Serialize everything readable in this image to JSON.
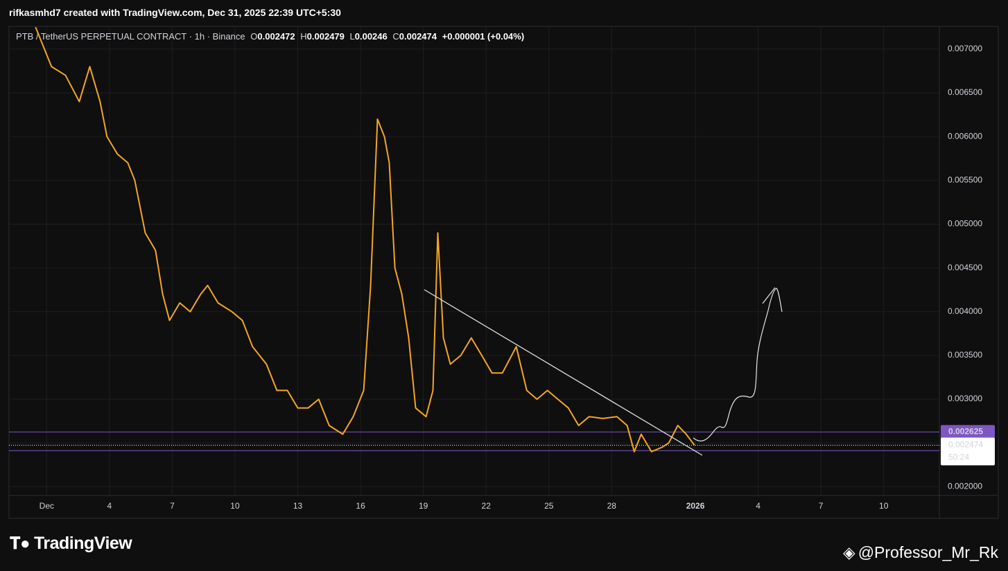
{
  "header": {
    "author_line": "rifkasmhd7 created with TradingView.com, Dec 31, 2025 22:39 UTC+5:30"
  },
  "chart_data": {
    "type": "line",
    "symbol": "PTB / TetherUS PERPETUAL CONTRACT · 1h · Binance",
    "ohlc": [
      {
        "name": "O",
        "value": 0.002472
      },
      {
        "name": "H",
        "value": 0.002479
      },
      {
        "name": "L",
        "value": 0.00246
      },
      {
        "name": "C",
        "value": 0.002474
      }
    ],
    "change": "+0.000001 (+0.04%)",
    "color": "#f5a623",
    "x": [
      0.47,
      1.23,
      1.9,
      2.56,
      3.06,
      3.55,
      3.88,
      4.38,
      4.88,
      5.21,
      5.71,
      6.2,
      6.54,
      6.87,
      7.36,
      7.86,
      8.36,
      8.69,
      9.19,
      9.85,
      10.35,
      10.84,
      11.5,
      12.0,
      12.5,
      13.0,
      13.5,
      14.0,
      14.5,
      15.15,
      15.65,
      16.15,
      16.48,
      16.81,
      17.14,
      17.37,
      17.64,
      17.97,
      18.3,
      18.63,
      19.13,
      19.46,
      19.69,
      19.96,
      20.29,
      20.79,
      21.29,
      21.79,
      22.28,
      22.78,
      23.44,
      23.94,
      24.43,
      24.93,
      25.43,
      25.93,
      26.42,
      26.92,
      27.58,
      28.25,
      28.74,
      29.08,
      29.41,
      29.9,
      30.4,
      30.73,
      31.16,
      31.56,
      31.96
    ],
    "values": [
      0.00725,
      0.0068,
      0.0067,
      0.0064,
      0.0068,
      0.0064,
      0.006,
      0.0058,
      0.0057,
      0.0055,
      0.0049,
      0.0047,
      0.0042,
      0.0039,
      0.0041,
      0.004,
      0.0042,
      0.0043,
      0.0041,
      0.004,
      0.0039,
      0.0036,
      0.0034,
      0.0031,
      0.0031,
      0.0029,
      0.0029,
      0.003,
      0.0027,
      0.0026,
      0.0028,
      0.0031,
      0.0043,
      0.0062,
      0.006,
      0.0057,
      0.0045,
      0.0042,
      0.0037,
      0.0029,
      0.0028,
      0.0031,
      0.0049,
      0.0037,
      0.0034,
      0.0035,
      0.0037,
      0.0035,
      0.0033,
      0.0033,
      0.0036,
      0.0031,
      0.003,
      0.0031,
      0.003,
      0.0029,
      0.0027,
      0.0028,
      0.00278,
      0.0028,
      0.0027,
      0.0024,
      0.0026,
      0.0024,
      0.00245,
      0.0025,
      0.0027,
      0.0026,
      0.002474
    ],
    "xlim": [
      -0.8,
      43.66
    ],
    "xticks": [
      {
        "value": 1,
        "label": "Dec"
      },
      4,
      7,
      10,
      13,
      16,
      19,
      22,
      25,
      28,
      {
        "value": 32,
        "label": "2026"
      },
      {
        "value": 35,
        "label": "4"
      },
      {
        "value": 38,
        "label": "7"
      },
      {
        "value": 41,
        "label": "10"
      }
    ],
    "ylim": [
      0.0019,
      0.00726
    ],
    "yticks": [
      {
        "value": 0.002,
        "label": "0.002000"
      },
      {
        "value": 0.0025,
        "label": "0.002500"
      },
      {
        "value": 0.003,
        "label": "0.003000"
      },
      {
        "value": 0.0035,
        "label": "0.003500"
      },
      {
        "value": 0.004,
        "label": "0.004000"
      },
      {
        "value": 0.0045,
        "label": "0.004500"
      },
      {
        "value": 0.005,
        "label": "0.005000"
      },
      {
        "value": 0.0055,
        "label": "0.005500"
      },
      {
        "value": 0.006,
        "label": "0.006000"
      },
      {
        "value": 0.0065,
        "label": "0.006500"
      },
      {
        "value": 0.007,
        "label": "0.007000"
      }
    ],
    "grid": true,
    "price_lines": [
      {
        "value": 0.002625,
        "color": "#7e57c2"
      },
      {
        "value": 0.002412,
        "color": "#7e57c2"
      }
    ],
    "current_price": 0.002474,
    "countdown": "50:24"
  },
  "footer": {
    "brand": "TradingView",
    "watermark": "@Professor_Mr_Rk"
  }
}
